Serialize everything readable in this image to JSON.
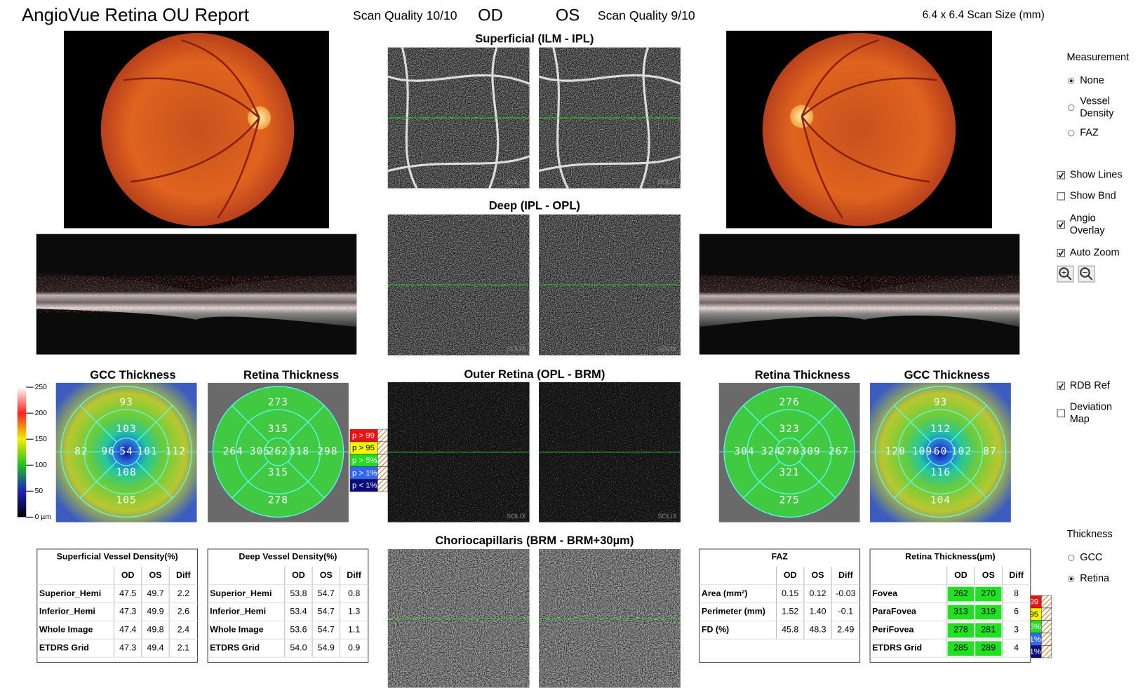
{
  "header": {
    "title": "AngioVue Retina OU Report",
    "od_quality": "Scan Quality 10/10",
    "od": "OD",
    "os": "OS",
    "os_quality": "Scan Quality 9/10",
    "scan_size": "6.4 x 6.4 Scan Size (mm)"
  },
  "slabs": [
    "Superficial (ILM - IPL)",
    "Deep (IPL - OPL)",
    "Outer Retina (OPL - BRM)",
    "Choriocapillaris (BRM - BRM+30µm)"
  ],
  "watermark": "SOLIX",
  "maps": [
    {
      "title": "GCC Thickness",
      "kind": "gcc",
      "values": [
        93,
        103,
        82,
        96,
        54,
        101,
        112,
        108,
        105
      ]
    },
    {
      "title": "Retina Thickness",
      "kind": "retina",
      "values": [
        273,
        315,
        264,
        305,
        262,
        318,
        298,
        315,
        278
      ]
    },
    {
      "title": "Retina Thickness",
      "kind": "retina",
      "values": [
        276,
        323,
        304,
        324,
        270,
        309,
        267,
        321,
        275
      ]
    },
    {
      "title": "GCC Thickness",
      "kind": "gcc",
      "values": [
        93,
        112,
        120,
        109,
        60,
        102,
        87,
        116,
        104
      ]
    }
  ],
  "colorbar": {
    "ylim": [
      0,
      250
    ],
    "yticks": [
      {
        "value": 0,
        "label": "0 µm"
      },
      50,
      100,
      150,
      200,
      250
    ]
  },
  "significance": {
    "labels": [
      "p > 99",
      "p > 95",
      "p > 5%",
      "p > 1%",
      "p < 1%"
    ],
    "colors": [
      "#ee1111",
      "#f5f500",
      "#22dd22",
      "#3366ff",
      "#0a0a7a"
    ]
  },
  "tables": [
    {
      "title": "Superficial Vessel Density(%)",
      "columns": [
        "OD",
        "OS",
        "Diff"
      ],
      "rows": [
        [
          "Superior_Hemi",
          "47.5",
          "49.7",
          "2.2"
        ],
        [
          "Inferior_Hemi",
          "47.3",
          "49.9",
          "2.6"
        ],
        [
          "Whole Image",
          "47.4",
          "49.8",
          "2.4"
        ],
        [
          "ETDRS Grid",
          "47.3",
          "49.4",
          "2.1"
        ]
      ]
    },
    {
      "title": "Deep Vessel Density(%)",
      "columns": [
        "OD",
        "OS",
        "Diff"
      ],
      "rows": [
        [
          "Superior_Hemi",
          "53.8",
          "54.7",
          "0.8"
        ],
        [
          "Inferior_Hemi",
          "53.4",
          "54.7",
          "1.3"
        ],
        [
          "Whole Image",
          "53.6",
          "54.7",
          "1.1"
        ],
        [
          "ETDRS Grid",
          "54.0",
          "54.9",
          "0.9"
        ]
      ]
    },
    {
      "title": "FAZ",
      "columns": [
        "OD",
        "OS",
        "Diff"
      ],
      "rows": [
        [
          "Area (mm²)",
          "0.15",
          "0.12",
          "-0.03"
        ],
        [
          "Perimeter (mm)",
          "1.52",
          "1.40",
          "-0.1"
        ],
        [
          "FD (%)",
          "45.8",
          "48.3",
          "2.49"
        ]
      ]
    },
    {
      "title": "Retina Thickness(µm)",
      "columns": [
        "OD",
        "OS",
        "Diff"
      ],
      "highlight_color": "#22e022",
      "rows": [
        [
          "Fovea",
          "262",
          "270",
          "8"
        ],
        [
          "ParaFovea",
          "313",
          "319",
          "6"
        ],
        [
          "PeriFovea",
          "278",
          "281",
          "3"
        ],
        [
          "ETDRS Grid",
          "285",
          "289",
          "4"
        ]
      ]
    }
  ],
  "controls": {
    "measurement": {
      "title": "Measurement",
      "options": [
        {
          "label": [
            "None"
          ],
          "checked": true
        },
        {
          "label": [
            "Vessel",
            "Density"
          ],
          "checked": false
        },
        {
          "label": [
            "FAZ"
          ],
          "checked": false
        }
      ]
    },
    "display": [
      {
        "label": [
          "Show Lines"
        ],
        "checked": true
      },
      {
        "label": [
          "Show Bnd"
        ],
        "checked": false
      },
      {
        "label": [
          "Angio",
          "Overlay"
        ],
        "checked": true
      },
      {
        "label": [
          "Auto Zoom"
        ],
        "checked": true
      }
    ],
    "reference": [
      {
        "label": [
          "RDB Ref"
        ],
        "checked": true
      },
      {
        "label": [
          "Deviation",
          "Map"
        ],
        "checked": false
      }
    ],
    "thickness": {
      "title": "Thickness",
      "options": [
        {
          "label": [
            "GCC"
          ],
          "checked": false
        },
        {
          "label": [
            "Retina"
          ],
          "checked": true
        }
      ]
    }
  }
}
